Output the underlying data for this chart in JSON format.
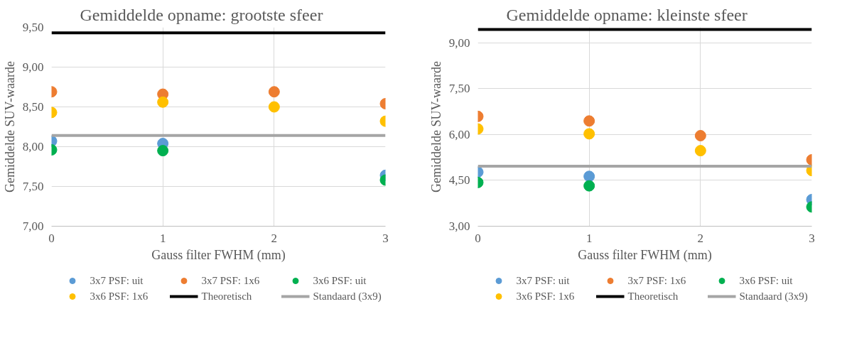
{
  "chart_data": [
    {
      "type": "scatter",
      "title": "Gemiddelde opname: grootste sfeer",
      "xlabel": "Gauss filter FWHM (mm)",
      "ylabel": "Gemiddelde SUV-waarde",
      "x": [
        0,
        1,
        2,
        3
      ],
      "xlim": [
        0,
        3
      ],
      "xticks": [
        0,
        1,
        2,
        3
      ],
      "ylim": [
        7,
        9.5
      ],
      "yticks": [
        {
          "value": 7,
          "label": "7,00"
        },
        {
          "value": 7.5,
          "label": "7,50"
        },
        {
          "value": 8,
          "label": "8,00"
        },
        {
          "value": 8.5,
          "label": "8,50"
        },
        {
          "value": 9,
          "label": "9,00"
        },
        {
          "value": 9.5,
          "label": "9,50"
        }
      ],
      "grid": true,
      "legend": "bottom",
      "marker": "circle",
      "series": [
        {
          "name": "3x7 PSF: uit",
          "color": "#5b9bd5",
          "values": [
            8.07,
            8.04,
            null,
            7.64
          ]
        },
        {
          "name": "3x7 PSF: 1x6",
          "color": "#ed7d31",
          "values": [
            8.69,
            8.66,
            8.69,
            8.54
          ]
        },
        {
          "name": "3x6 PSF: uit",
          "color": "#00b050",
          "values": [
            7.96,
            7.95,
            null,
            7.58
          ]
        },
        {
          "name": "3x6 PSF: 1x6",
          "color": "#ffc000",
          "values": [
            8.43,
            8.56,
            8.5,
            8.32
          ]
        },
        {
          "name": "Theoretisch",
          "type": "line",
          "marker": "none",
          "color": "#000000",
          "values": [
            9.43,
            9.43,
            9.43,
            9.43
          ]
        },
        {
          "name": "Standaard (3x9)",
          "type": "line",
          "marker": "none",
          "color": "#a5a5a5",
          "values": [
            8.14,
            8.14,
            8.14,
            8.14
          ]
        }
      ]
    },
    {
      "type": "scatter",
      "title": "Gemiddelde opname: kleinste sfeer",
      "xlabel": "Gauss filter FWHM (mm)",
      "ylabel": "Gemiddelde SUV-waarde",
      "x": [
        0,
        1,
        2,
        3
      ],
      "xlim": [
        0,
        3
      ],
      "xticks": [
        0,
        1,
        2,
        3
      ],
      "ylim": [
        3,
        9.5
      ],
      "yticks": [
        {
          "value": 3,
          "label": "3,00"
        },
        {
          "value": 4.5,
          "label": "4,50"
        },
        {
          "value": 6,
          "label": "6,00"
        },
        {
          "value": 7.5,
          "label": "7,50"
        },
        {
          "value": 9,
          "label": "9,00"
        }
      ],
      "grid": true,
      "legend": "bottom",
      "marker": "circle",
      "series": [
        {
          "name": "3x7 PSF: uit",
          "color": "#5b9bd5",
          "values": [
            4.77,
            4.63,
            null,
            3.87
          ]
        },
        {
          "name": "3x7 PSF: 1x6",
          "color": "#ed7d31",
          "values": [
            6.59,
            6.44,
            5.96,
            5.17
          ]
        },
        {
          "name": "3x6 PSF: uit",
          "color": "#00b050",
          "values": [
            4.43,
            4.32,
            null,
            3.63
          ]
        },
        {
          "name": "3x6 PSF: 1x6",
          "color": "#ffc000",
          "values": [
            6.18,
            6.02,
            5.47,
            4.82
          ]
        },
        {
          "name": "Theoretisch",
          "type": "line",
          "marker": "none",
          "color": "#000000",
          "values": [
            9.43,
            9.43,
            9.43,
            9.43
          ]
        },
        {
          "name": "Standaard (3x9)",
          "type": "line",
          "marker": "none",
          "color": "#a5a5a5",
          "values": [
            4.96,
            4.96,
            4.96,
            4.96
          ]
        }
      ]
    }
  ]
}
